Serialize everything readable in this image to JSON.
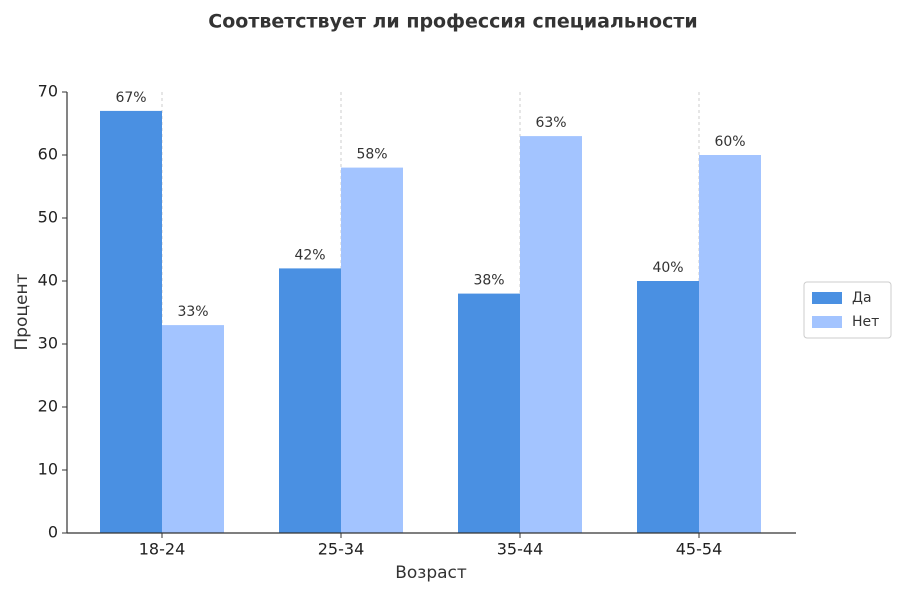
{
  "chart_data": {
    "type": "bar",
    "title": "Соответствует ли профессия специальности",
    "x_label": "Возраст",
    "y_label": "Процент",
    "categories": [
      "18-24",
      "25-34",
      "35-44",
      "45-54"
    ],
    "series": [
      {
        "name": "Да",
        "color": "#4a90e2",
        "values": [
          67,
          42,
          38,
          40
        ],
        "value_labels": [
          "67%",
          "42%",
          "38%",
          "40%"
        ]
      },
      {
        "name": "Нет",
        "color": "#a3c4ff",
        "values": [
          33,
          58,
          63,
          60
        ],
        "value_labels": [
          "33%",
          "58%",
          "63%",
          "60%"
        ]
      }
    ],
    "ylim": [
      0,
      70
    ],
    "yticks": [
      0,
      10,
      20,
      30,
      40,
      50,
      60,
      70
    ],
    "grid": "x",
    "legend": "right"
  }
}
